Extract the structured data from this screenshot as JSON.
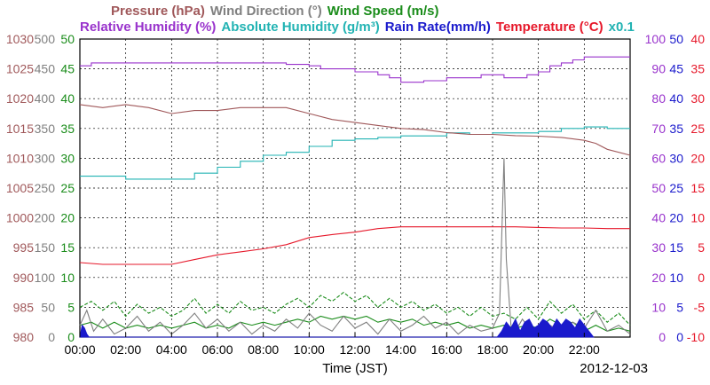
{
  "header": {
    "line1": [
      {
        "text": "Pressure (hPa)",
        "color": "#a0585a"
      },
      {
        "text": "Wind Direction (°)",
        "color": "#808080"
      },
      {
        "text": "Wind Speed (m/s)",
        "color": "#1a8c1a"
      }
    ],
    "line2": [
      {
        "text": "Relative Humidity (%)",
        "color": "#9933cc"
      },
      {
        "text": "Absolute Humidity (g/m³)",
        "color": "#22b3b3"
      },
      {
        "text": "Rain Rate(mm/h)",
        "color": "#1a1acc"
      },
      {
        "text": "Temperature (°C)",
        "color": "#e6192b"
      },
      {
        "text": "x0.1",
        "color": "#22b3b3"
      }
    ]
  },
  "footer": {
    "xlabel": "Time (JST)",
    "date": "2012-12-03"
  },
  "chart_data": {
    "type": "line",
    "x_unit": "hours",
    "x_ticks": [
      0,
      2,
      4,
      6,
      8,
      10,
      12,
      14,
      16,
      18,
      20,
      22
    ],
    "x_tick_labels": [
      "00:00",
      "02:00",
      "04:00",
      "06:00",
      "08:00",
      "10:00",
      "12:00",
      "14:00",
      "16:00",
      "18:00",
      "20:00",
      "22:00"
    ],
    "xlim": [
      0,
      24
    ],
    "grid": true,
    "axes": {
      "pressure": {
        "ticks": [
          980,
          985,
          990,
          995,
          1000,
          1005,
          1010,
          1015,
          1020,
          1025,
          1030
        ],
        "ylim": [
          980,
          1030
        ],
        "color": "#a0585a",
        "side": "left"
      },
      "wind_direction": {
        "ticks": [
          0,
          50,
          100,
          150,
          200,
          250,
          300,
          350,
          400,
          450,
          500
        ],
        "ylim": [
          0,
          500
        ],
        "color": "#808080",
        "side": "left"
      },
      "wind_speed": {
        "ticks": [
          0,
          5,
          10,
          15,
          20,
          25,
          30,
          35,
          40,
          45,
          50
        ],
        "ylim": [
          0,
          50
        ],
        "color": "#1a8c1a",
        "side": "left"
      },
      "relative_humidity": {
        "ticks": [
          0,
          10,
          20,
          30,
          40,
          50,
          60,
          70,
          80,
          90,
          100
        ],
        "ylim": [
          0,
          100
        ],
        "color": "#9933cc",
        "side": "right"
      },
      "rain_rate": {
        "ticks": [
          0,
          5,
          10,
          15,
          20,
          25,
          30,
          35,
          40,
          45,
          50
        ],
        "ylim": [
          0,
          50
        ],
        "color": "#1a1acc",
        "side": "right"
      },
      "temperature": {
        "ticks": [
          -10,
          -5,
          0,
          5,
          10,
          15,
          20,
          25,
          30,
          35,
          40
        ],
        "ylim": [
          -10,
          40
        ],
        "color": "#e6192b",
        "side": "right"
      }
    },
    "series": [
      {
        "name": "Relative Humidity (%)",
        "axis": "relative_humidity",
        "color": "#9933cc",
        "step": true,
        "x": [
          0,
          0.5,
          1,
          2,
          3,
          4,
          5,
          6,
          7,
          8,
          9,
          10,
          10.5,
          11,
          12,
          13,
          13.5,
          14,
          14.5,
          15,
          16,
          17,
          17.5,
          18,
          18.5,
          19,
          19.5,
          20,
          20.5,
          21,
          21.5,
          22,
          23,
          24
        ],
        "y": [
          91,
          92,
          92,
          92,
          92,
          92,
          92,
          92,
          92,
          92,
          91.5,
          91,
          90,
          90,
          89,
          88,
          87,
          85.5,
          85.5,
          86,
          87,
          87,
          88,
          88,
          87,
          87,
          88,
          89,
          91,
          92,
          93,
          94,
          94,
          94
        ]
      },
      {
        "name": "Absolute Humidity (g/m³) x0.1",
        "axis": "relative_humidity",
        "color": "#22b3b3",
        "step": true,
        "x": [
          0,
          1,
          2,
          3,
          4,
          5,
          6,
          7,
          8,
          9,
          10,
          11,
          12,
          13,
          14,
          15,
          16,
          17,
          18,
          19,
          20,
          21,
          22,
          23,
          24
        ],
        "y": [
          54,
          54,
          53,
          53,
          53,
          55,
          57,
          59,
          61,
          62,
          64,
          66,
          66.5,
          67,
          67.5,
          67.5,
          68.5,
          68,
          68.5,
          68.5,
          69,
          70,
          70.5,
          70,
          70
        ]
      },
      {
        "name": "Pressure (hPa)",
        "axis": "pressure",
        "color": "#a0585a",
        "step": false,
        "x": [
          0,
          1,
          2,
          3,
          4,
          5,
          6,
          7,
          8,
          9,
          10,
          11,
          12,
          13,
          14,
          15,
          16,
          17,
          18,
          19,
          20,
          21,
          22,
          22.5,
          23,
          24
        ],
        "y": [
          1019,
          1018.5,
          1019,
          1018.5,
          1017.5,
          1018,
          1018,
          1018.5,
          1018.5,
          1018.5,
          1017.5,
          1016.5,
          1016,
          1015.5,
          1015,
          1014.8,
          1014.3,
          1014,
          1014,
          1013.8,
          1013.7,
          1013.5,
          1013,
          1012.5,
          1011.5,
          1010.5
        ]
      },
      {
        "name": "Temperature (°C)",
        "axis": "temperature",
        "color": "#e6192b",
        "step": false,
        "x": [
          0,
          1,
          2,
          3,
          4,
          5,
          6,
          7,
          8,
          9,
          10,
          11,
          12,
          13,
          14,
          15,
          16,
          17,
          18,
          19,
          20,
          21,
          22,
          23,
          24
        ],
        "y": [
          2.5,
          2.2,
          2.2,
          2.2,
          2.2,
          3,
          3.8,
          4.3,
          4.8,
          5.5,
          6.7,
          7.2,
          7.6,
          8.2,
          8.5,
          8.5,
          8.5,
          8.5,
          8.5,
          8.5,
          8.4,
          8.3,
          8.3,
          8.2,
          8.2
        ]
      },
      {
        "name": "Wind Speed gust (m/s)",
        "axis": "wind_speed",
        "color": "#1a8c1a",
        "dashed": true,
        "step": false,
        "x": [
          0,
          0.5,
          1,
          1.5,
          2,
          2.5,
          3,
          3.5,
          4,
          4.5,
          5,
          5.5,
          6,
          6.5,
          7,
          7.5,
          8,
          8.5,
          9,
          9.5,
          10,
          10.5,
          11,
          11.5,
          12,
          12.5,
          13,
          13.5,
          14,
          14.5,
          15,
          15.5,
          16,
          16.5,
          17,
          17.5,
          18,
          18.5,
          19,
          19.5,
          20,
          20.5,
          21,
          21.5,
          22,
          22.5,
          23,
          23.5,
          24
        ],
        "y": [
          5,
          6,
          4.5,
          6,
          3.5,
          5.5,
          4,
          5,
          3.5,
          4.5,
          6.5,
          4,
          5.5,
          4,
          6,
          4.5,
          5,
          4,
          5.5,
          6.5,
          5,
          7,
          6,
          7.5,
          6,
          7,
          5,
          6.5,
          5,
          6,
          4.5,
          5.5,
          4,
          5,
          3.5,
          5,
          3.5,
          4,
          3,
          5,
          3,
          6,
          4,
          5.5,
          3,
          4.5,
          2.5,
          4,
          2
        ]
      },
      {
        "name": "Wind Speed (m/s)",
        "axis": "wind_speed",
        "color": "#1a8c1a",
        "dashed": false,
        "step": false,
        "x": [
          0,
          0.5,
          1,
          1.5,
          2,
          2.5,
          3,
          3.5,
          4,
          4.5,
          5,
          5.5,
          6,
          6.5,
          7,
          7.5,
          8,
          8.5,
          9,
          9.5,
          10,
          10.5,
          11,
          11.5,
          12,
          12.5,
          13,
          13.5,
          14,
          14.5,
          15,
          15.5,
          16,
          16.5,
          17,
          17.5,
          18,
          18.5,
          19,
          19.5,
          20,
          20.5,
          21,
          21.5,
          22,
          22.5,
          23,
          23.5,
          24
        ],
        "y": [
          2,
          2.5,
          1.5,
          2.5,
          1.5,
          2,
          1.5,
          2,
          1.5,
          2,
          2.5,
          1.5,
          2,
          1.5,
          2.5,
          2,
          2.5,
          2,
          2.5,
          3,
          2.5,
          3.5,
          3,
          3.5,
          3,
          3.5,
          2.5,
          3,
          2.5,
          3,
          2,
          2.5,
          2,
          2.5,
          1.5,
          2,
          1.5,
          2,
          1.5,
          2,
          1.5,
          3,
          2,
          2.5,
          1,
          2,
          1,
          1.5,
          1
        ]
      },
      {
        "name": "Wind Direction (°)",
        "axis": "wind_direction",
        "color": "#808080",
        "dashed": false,
        "step": false,
        "x": [
          0,
          0.3,
          0.6,
          1,
          1.5,
          2,
          2.5,
          3,
          3.5,
          4,
          4.5,
          5,
          5.5,
          6,
          6.5,
          7,
          7.5,
          8,
          8.5,
          9,
          9.5,
          10,
          10.5,
          11,
          11.5,
          12,
          12.5,
          13,
          13.5,
          14,
          14.5,
          15,
          15.5,
          16,
          16.5,
          17,
          17.5,
          18,
          18.3,
          18.5,
          18.6,
          18.8,
          19,
          19.3,
          19.6,
          20,
          20.5,
          21,
          21.5,
          22,
          22.5,
          23,
          23.5,
          24
        ],
        "y": [
          20,
          45,
          10,
          30,
          5,
          15,
          35,
          10,
          25,
          5,
          20,
          40,
          15,
          30,
          10,
          25,
          5,
          20,
          10,
          30,
          15,
          40,
          20,
          10,
          35,
          15,
          25,
          5,
          30,
          10,
          20,
          35,
          15,
          25,
          5,
          20,
          10,
          15,
          40,
          300,
          130,
          20,
          10,
          30,
          15,
          5,
          20,
          10,
          25,
          15,
          45,
          10,
          20,
          5
        ]
      },
      {
        "name": "Rain Rate (mm/h)",
        "axis": "rain_rate",
        "color": "#1a1acc",
        "type": "area",
        "x": [
          0,
          0.1,
          0.2,
          0.3,
          0.4,
          18.2,
          18.4,
          18.6,
          18.8,
          19,
          19.2,
          19.4,
          19.6,
          19.8,
          20,
          20.2,
          20.4,
          20.6,
          20.8,
          21,
          21.2,
          21.4,
          21.6,
          21.8,
          22,
          22.2,
          22.4
        ],
        "y": [
          0,
          2,
          1.5,
          0.5,
          0,
          0,
          1,
          2.5,
          1.5,
          3,
          1,
          2.5,
          3,
          1.5,
          2,
          3,
          2.5,
          1.5,
          3,
          2,
          3,
          2.5,
          1.5,
          3,
          2,
          1,
          0
        ]
      }
    ]
  }
}
